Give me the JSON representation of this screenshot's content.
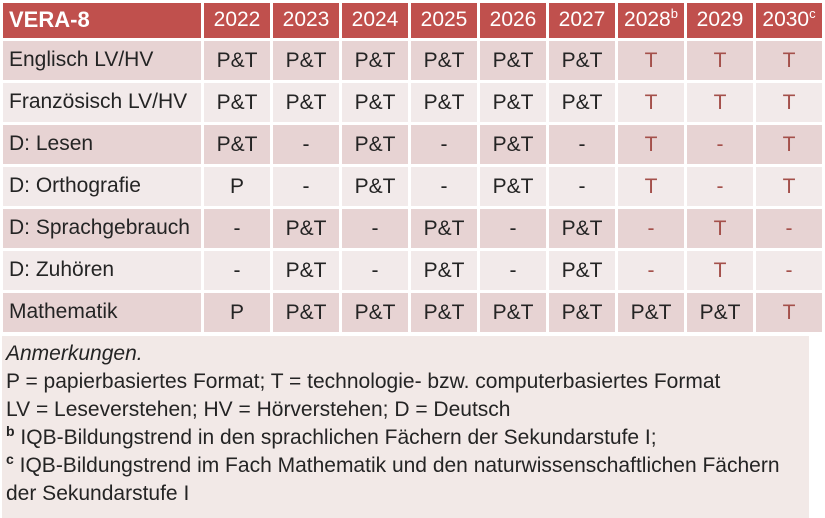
{
  "colors": {
    "header_bg": "#c0504d",
    "header_text": "#ffffff",
    "row_dark": "#e7d3d3",
    "row_light": "#f2eaea",
    "notes_bg": "#f2e9e7",
    "accent_red": "#a4504b",
    "text_dark": "#242424"
  },
  "table": {
    "title": "VERA-8",
    "year_columns": [
      {
        "label": "2022",
        "superscript": ""
      },
      {
        "label": "2023",
        "superscript": ""
      },
      {
        "label": "2024",
        "superscript": ""
      },
      {
        "label": "2025",
        "superscript": ""
      },
      {
        "label": "2026",
        "superscript": ""
      },
      {
        "label": "2027",
        "superscript": ""
      },
      {
        "label": "2028",
        "superscript": "b"
      },
      {
        "label": "2029",
        "superscript": ""
      },
      {
        "label": "2030",
        "superscript": "c"
      }
    ],
    "rows": [
      {
        "label": "Englisch LV/HV",
        "cells": [
          {
            "value": "P&T",
            "red": false
          },
          {
            "value": "P&T",
            "red": false
          },
          {
            "value": "P&T",
            "red": false
          },
          {
            "value": "P&T",
            "red": false
          },
          {
            "value": "P&T",
            "red": false
          },
          {
            "value": "P&T",
            "red": false
          },
          {
            "value": "T",
            "red": true
          },
          {
            "value": "T",
            "red": true
          },
          {
            "value": "T",
            "red": true
          }
        ]
      },
      {
        "label": "Französisch LV/HV",
        "cells": [
          {
            "value": "P&T",
            "red": false
          },
          {
            "value": "P&T",
            "red": false
          },
          {
            "value": "P&T",
            "red": false
          },
          {
            "value": "P&T",
            "red": false
          },
          {
            "value": "P&T",
            "red": false
          },
          {
            "value": "P&T",
            "red": false
          },
          {
            "value": "T",
            "red": true
          },
          {
            "value": "T",
            "red": true
          },
          {
            "value": "T",
            "red": true
          }
        ]
      },
      {
        "label": "D: Lesen",
        "cells": [
          {
            "value": "P&T",
            "red": false
          },
          {
            "value": "-",
            "red": false
          },
          {
            "value": "P&T",
            "red": false
          },
          {
            "value": "-",
            "red": false
          },
          {
            "value": "P&T",
            "red": false
          },
          {
            "value": "-",
            "red": false
          },
          {
            "value": "T",
            "red": true
          },
          {
            "value": "-",
            "red": true
          },
          {
            "value": "T",
            "red": true
          }
        ]
      },
      {
        "label": "D: Orthografie",
        "cells": [
          {
            "value": "P",
            "red": false
          },
          {
            "value": "-",
            "red": false
          },
          {
            "value": "P&T",
            "red": false
          },
          {
            "value": "-",
            "red": false
          },
          {
            "value": "P&T",
            "red": false
          },
          {
            "value": "-",
            "red": false
          },
          {
            "value": "T",
            "red": true
          },
          {
            "value": "-",
            "red": true
          },
          {
            "value": "T",
            "red": true
          }
        ]
      },
      {
        "label": "D: Sprachgebrauch",
        "cells": [
          {
            "value": "-",
            "red": false
          },
          {
            "value": "P&T",
            "red": false
          },
          {
            "value": "-",
            "red": false
          },
          {
            "value": "P&T",
            "red": false
          },
          {
            "value": "-",
            "red": false
          },
          {
            "value": "P&T",
            "red": false
          },
          {
            "value": "-",
            "red": true
          },
          {
            "value": "T",
            "red": true
          },
          {
            "value": "-",
            "red": true
          }
        ]
      },
      {
        "label": "D: Zuhören",
        "cells": [
          {
            "value": "-",
            "red": false
          },
          {
            "value": "P&T",
            "red": false
          },
          {
            "value": "-",
            "red": false
          },
          {
            "value": "P&T",
            "red": false
          },
          {
            "value": "-",
            "red": false
          },
          {
            "value": "P&T",
            "red": false
          },
          {
            "value": "-",
            "red": true
          },
          {
            "value": "T",
            "red": true
          },
          {
            "value": "-",
            "red": true
          }
        ]
      },
      {
        "label": "Mathematik",
        "cells": [
          {
            "value": "P",
            "red": false
          },
          {
            "value": "P&T",
            "red": false
          },
          {
            "value": "P&T",
            "red": false
          },
          {
            "value": "P&T",
            "red": false
          },
          {
            "value": "P&T",
            "red": false
          },
          {
            "value": "P&T",
            "red": false
          },
          {
            "value": "P&T",
            "red": false
          },
          {
            "value": "P&T",
            "red": false
          },
          {
            "value": "T",
            "red": true
          }
        ]
      }
    ]
  },
  "notes": {
    "heading": "Anmerkungen.",
    "lines": [
      {
        "superscript": "",
        "text": "P = papierbasiertes Format; T = technologie- bzw. computerbasiertes Format"
      },
      {
        "superscript": "",
        "text": "LV = Leseverstehen; HV = Hörverstehen; D = Deutsch"
      },
      {
        "superscript": "b",
        "text": "IQB-Bildungstrend in den sprachlichen Fächern der Sekundarstufe I;"
      },
      {
        "superscript": "c",
        "text": "IQB-Bildungstrend im Fach Mathematik und den naturwissenschaftlichen Fächern der Sekundarstufe I"
      }
    ]
  }
}
